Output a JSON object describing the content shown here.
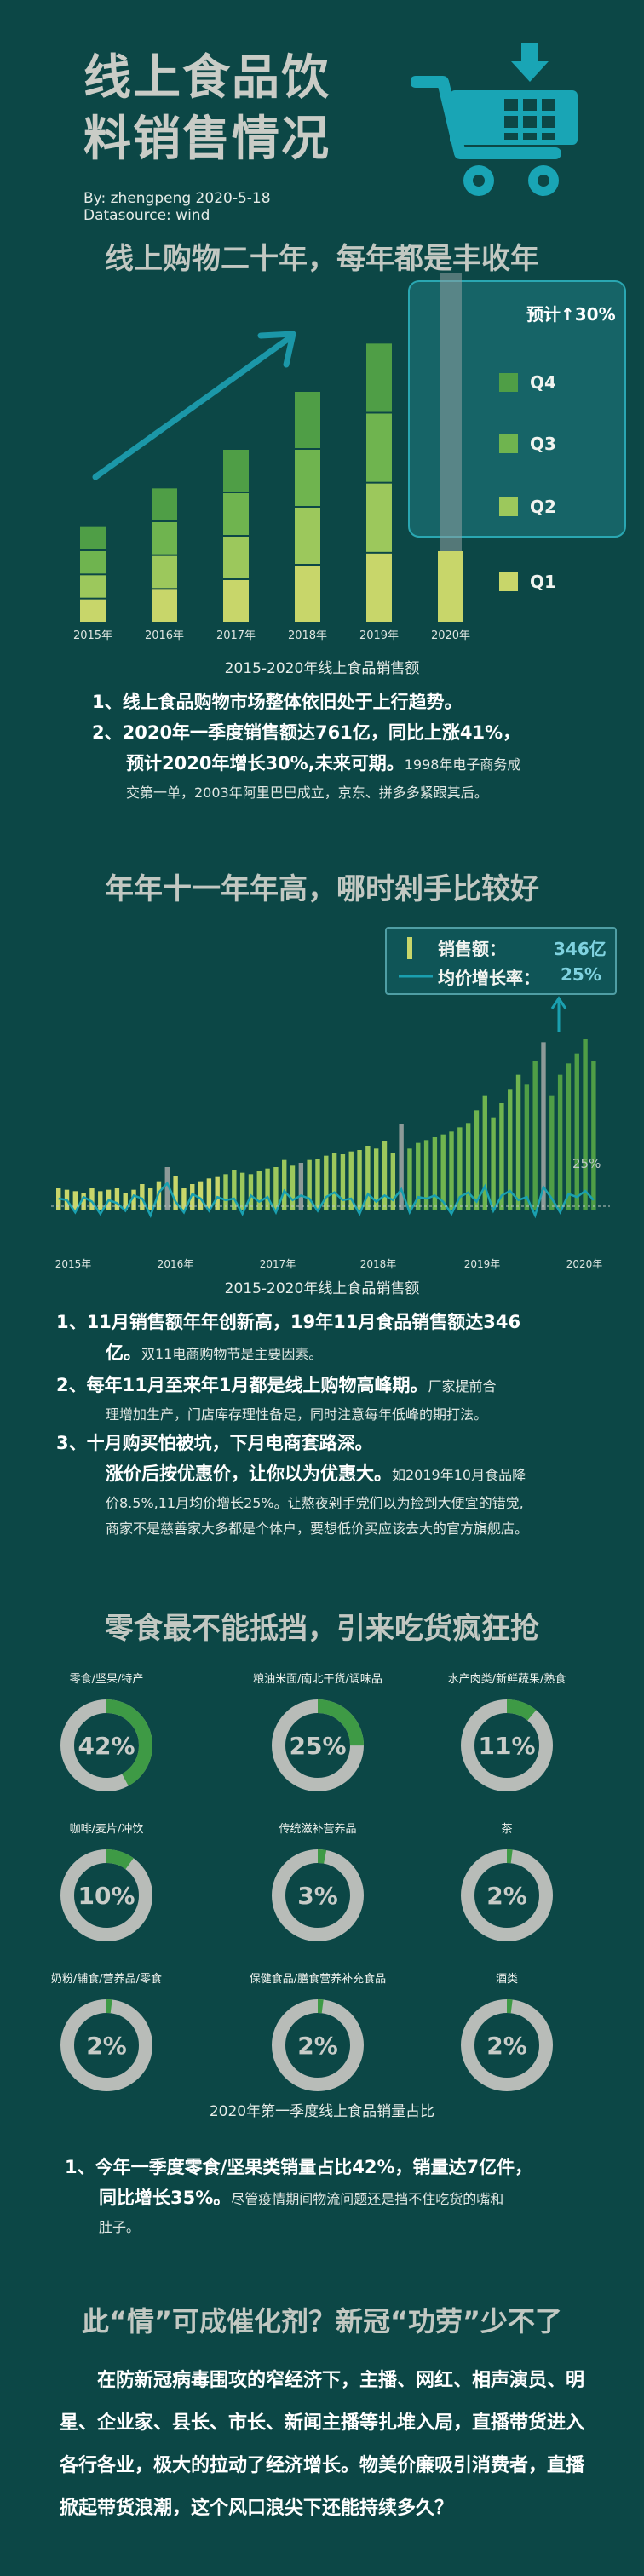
{
  "header": {
    "title_line1": "线上食品饮",
    "title_line2": "料销售情况",
    "author": "By:  zhengpeng      2020-5-18",
    "datasource": "Datasource:  wind"
  },
  "section1": {
    "title": "线上购物二十年，每年都是丰收年",
    "forecast_label": "预计↑30%",
    "caption": "2015-2020年线上食品销售额",
    "bullets": [
      {
        "main": "1、线上食品购物市场整体依旧处于上行趋势。",
        "small": ""
      },
      {
        "main": "2、2020年一季度销售额达761亿，同比上涨41%，",
        "small": ""
      },
      {
        "main": "预计2020年增长30%,未来可期。",
        "small": "1998年电子商务成"
      },
      {
        "main": "",
        "small": "交第一单，2003年阿里巴巴成立，京东、拼多多紧跟其后。"
      }
    ]
  },
  "section2": {
    "title": "年年十一年年高，哪时剁手比较好",
    "legend_sales": "销售额：",
    "legend_sales_value": "346亿",
    "legend_growth": "均价增长率：",
    "legend_growth_value": "25%",
    "line_label": "25%",
    "caption": "2015-2020年线上食品销售额",
    "bullets": [
      {
        "num": "1、",
        "main": "11月销售额年年创新高，19年11月食品销售额达346",
        "small": ""
      },
      {
        "num": "",
        "main": "亿。",
        "small": "双11电商购物节是主要因素。"
      },
      {
        "num": "2、",
        "main": "每年11月至来年1月都是线上购物高峰期。",
        "small": "厂家提前合"
      },
      {
        "num": "",
        "main": "",
        "small": "理增加生产，门店库存理性备足，同时注意每年低峰的期打法。"
      },
      {
        "num": "3、",
        "main": "十月购买怕被坑，下月电商套路深。",
        "small": ""
      },
      {
        "num": "",
        "main": "涨价后按优惠价，让你以为优惠大。",
        "small": "如2019年10月食品降"
      },
      {
        "num": "",
        "main": "",
        "small": "价8.5%,11月均价增长25%。让熬夜剁手党们以为捡到大便宜的错觉,"
      },
      {
        "num": "",
        "main": "",
        "small": "商家不是慈善家大多都是个体户，要想低价买应该去大的官方旗舰店。"
      }
    ]
  },
  "section3": {
    "title": "零食最不能抵挡，引来吃货疯狂抢",
    "caption": "2020年第一季度线上食品销量占比",
    "bullets": [
      {
        "main": "1、今年一季度零食/坚果类销量占比42%，销量达7亿件，",
        "small": ""
      },
      {
        "main": "同比增长35%。",
        "small": "尽管疫情期间物流问题还是挡不住吃货的嘴和"
      },
      {
        "main": "",
        "small": "肚子。"
      }
    ]
  },
  "section4": {
    "title": "此“情”可成催化剂？新冠“功劳”少不了",
    "paragraph": "在防新冠病毒围攻的窄经济下，主播、网红、相声演员、明星、企业家、县长、市长、新闻主播等扎堆入局，直播带货进入各行各业，极大的拉动了经济增长。物美价廉吸引消费者，直播掀起带货浪潮，这个风口浪尖下还能持续多久？"
  },
  "colors": {
    "background": "#0c4746",
    "q1": "#c8d66a",
    "q2": "#9cc85c",
    "q3": "#6fb44f",
    "q4": "#4f9e46",
    "accent": "#1aa0b0",
    "donut_track": "#b8bcb8",
    "donut_fill": "#3e9a45"
  },
  "icons": {
    "cart": "shopping-cart-icon",
    "arrow": "trend-arrow-icon"
  },
  "chart_data": [
    {
      "type": "bar",
      "title": "",
      "caption": "2015-2020年线上食品销售额",
      "categories": [
        "2015年",
        "2016年",
        "2017年",
        "2018年",
        "2019年",
        "2020年"
      ],
      "series": [
        {
          "name": "Q1",
          "values": [
            20,
            28,
            36,
            48,
            58,
            60
          ]
        },
        {
          "name": "Q2",
          "values": [
            20,
            28,
            36,
            48,
            58,
            0
          ]
        },
        {
          "name": "Q3",
          "values": [
            20,
            28,
            36,
            48,
            58,
            0
          ]
        },
        {
          "name": "Q4",
          "values": [
            20,
            28,
            36,
            48,
            58,
            0
          ]
        }
      ],
      "forecast_series": {
        "values": [
          0,
          0,
          0,
          0,
          0,
          232
        ]
      },
      "ylim": [
        0,
        240
      ],
      "legend": [
        "Q4",
        "Q3",
        "Q2",
        "Q1"
      ],
      "legend_position": "right",
      "annotation": "预计↑30%"
    },
    {
      "type": "bar",
      "title": "",
      "caption": "2015-2020年线上食品销售额",
      "x_tick_labels": [
        "2015年",
        "2016年",
        "2017年",
        "2018年",
        "2019年",
        "2020年"
      ],
      "sales": [
        30,
        28,
        26,
        24,
        30,
        26,
        28,
        30,
        24,
        28,
        36,
        30,
        40,
        60,
        48,
        30,
        36,
        40,
        44,
        46,
        50,
        56,
        52,
        50,
        54,
        58,
        60,
        70,
        62,
        66,
        70,
        72,
        76,
        80,
        78,
        82,
        84,
        90,
        86,
        96,
        80,
        120,
        86,
        94,
        98,
        102,
        106,
        110,
        116,
        122,
        140,
        160,
        130,
        150,
        170,
        190,
        176,
        210,
        236,
        160,
        190,
        206,
        220,
        240,
        210
      ],
      "growth": [
        10,
        8,
        -8,
        12,
        6,
        -10,
        8,
        4,
        -6,
        14,
        10,
        -12,
        18,
        30,
        6,
        -8,
        16,
        10,
        -6,
        12,
        8,
        10,
        -10,
        14,
        6,
        12,
        -8,
        20,
        8,
        14,
        10,
        -6,
        12,
        18,
        8,
        10,
        -10,
        16,
        6,
        14,
        8,
        22,
        -8,
        12,
        10,
        14,
        6,
        -10,
        12,
        18,
        6,
        26,
        -6,
        14,
        20,
        8,
        12,
        -12,
        25,
        10,
        -8,
        16,
        12,
        20,
        8
      ],
      "highlights_idx": [
        13,
        29,
        41,
        58
      ],
      "legend": [
        "销售额：",
        "均价增长率："
      ],
      "legend_values": [
        "346亿",
        "25%"
      ],
      "legend_position": "top-right",
      "reference_line": 25
    },
    {
      "type": "pie",
      "title": "",
      "caption": "2020年第一季度线上食品销量占比",
      "categories": [
        "零食/坚果/特产",
        "粮油米面/南北干货/调味品",
        "水产肉类/新鲜蔬果/熟食",
        "咖啡/麦片/冲饮",
        "传统滋补营养品",
        "茶",
        "奶粉/辅食/营养品/零食",
        "保健食品/膳食营养补充食品",
        "酒类"
      ],
      "values": [
        42,
        25,
        11,
        10,
        3,
        2,
        2,
        2,
        2
      ],
      "labels": [
        "42%",
        "25%",
        "11%",
        "10%",
        "3%",
        "2%",
        "2%",
        "2%",
        "2%"
      ]
    }
  ]
}
